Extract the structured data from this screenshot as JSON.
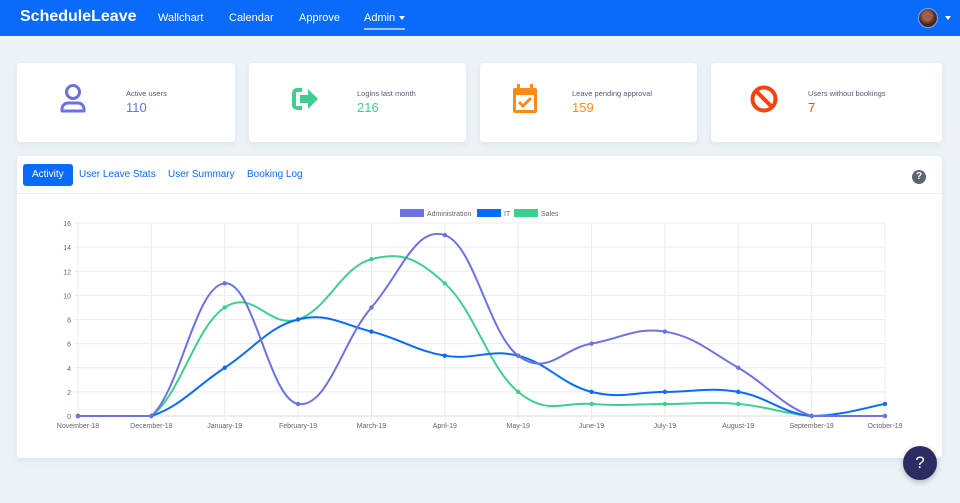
{
  "navbar": {
    "brand": "ScheduleLeave",
    "items": [
      {
        "label": "Wallchart"
      },
      {
        "label": "Calendar"
      },
      {
        "label": "Approve"
      },
      {
        "label": "Admin"
      }
    ],
    "active_item": "Admin"
  },
  "stats": [
    {
      "label": "Active users",
      "value": "110",
      "icon": "user-icon",
      "color": "#6872e0"
    },
    {
      "label": "Logins last month",
      "value": "216",
      "icon": "sign-in-icon",
      "color": "#3ecf8e"
    },
    {
      "label": "Leave pending approval",
      "value": "159",
      "icon": "calendar-check-icon",
      "color": "#fa8c16"
    },
    {
      "label": "Users without bookings",
      "value": "7",
      "icon": "ban-icon",
      "color": "#f5430f"
    }
  ],
  "tabs": [
    {
      "label": "Activity",
      "active": true
    },
    {
      "label": "User Leave Stats"
    },
    {
      "label": "User Summary"
    },
    {
      "label": "Booking Log"
    }
  ],
  "help_fab": "?",
  "chart_data": {
    "type": "line",
    "title": "",
    "xlabel": "",
    "ylabel": "",
    "categories": [
      "November-18",
      "December-18",
      "January-19",
      "February-19",
      "March-19",
      "April-19",
      "May-19",
      "June-19",
      "July-19",
      "August-19",
      "September-19",
      "October-19"
    ],
    "ylim": [
      0,
      16
    ],
    "yticks": [
      0,
      2,
      4,
      6,
      8,
      10,
      12,
      14,
      16
    ],
    "grid": true,
    "legend_position": "top",
    "series": [
      {
        "name": "Administration",
        "color": "#6c72e0",
        "values": [
          0,
          0,
          11,
          1,
          9,
          15,
          5,
          6,
          7,
          4,
          0,
          0
        ]
      },
      {
        "name": "IT",
        "color": "#0a6bfb",
        "values": [
          0,
          0,
          4,
          8,
          7,
          5,
          5,
          2,
          2,
          2,
          0,
          1
        ]
      },
      {
        "name": "Sales",
        "color": "#3ecf8e",
        "values": [
          0,
          0,
          9,
          8,
          13,
          11,
          2,
          1,
          1,
          1,
          0,
          0
        ]
      }
    ]
  }
}
